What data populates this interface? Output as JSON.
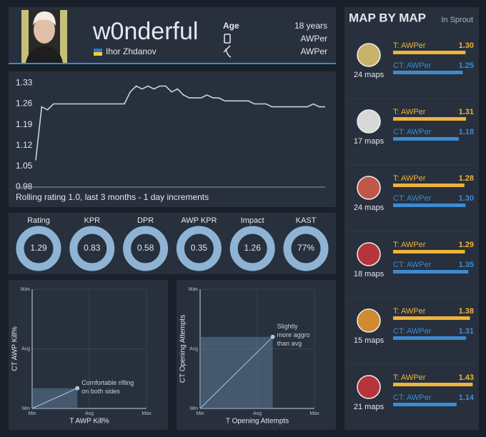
{
  "header": {
    "name": "w0nderful",
    "real_name": "Ihor Zhdanov",
    "info": [
      {
        "label": "Age",
        "value": "18 years"
      },
      {
        "value": "AWPer"
      },
      {
        "value": "AWPer"
      }
    ]
  },
  "chart_data": [
    {
      "type": "line",
      "caption": "Rolling rating 1.0, last 3 months - 1 day increments",
      "values": [
        1.07,
        1.25,
        1.24,
        1.26,
        1.26,
        1.26,
        1.26,
        1.26,
        1.26,
        1.26,
        1.26,
        1.26,
        1.26,
        1.26,
        1.26,
        1.26,
        1.3,
        1.32,
        1.31,
        1.32,
        1.31,
        1.32,
        1.32,
        1.3,
        1.31,
        1.29,
        1.28,
        1.28,
        1.28,
        1.29,
        1.28,
        1.28,
        1.27,
        1.27,
        1.27,
        1.27,
        1.27,
        1.26,
        1.26,
        1.26,
        1.25,
        1.25,
        1.25,
        1.25,
        1.25,
        1.25,
        1.25,
        1.26,
        1.25,
        1.25
      ],
      "color": "#c9d3de",
      "ylim": [
        0.98,
        1.35
      ],
      "yticks": [
        0.98,
        1.05,
        1.12,
        1.19,
        1.26,
        1.33
      ],
      "grid": false
    },
    {
      "type": "scatter",
      "x_label": "T AWP Kill%",
      "y_label": "CT AWP Kill%",
      "annotation": [
        "Comfortable rifling",
        "on both sides"
      ],
      "x": [
        0.79
      ],
      "values": [
        0.34
      ],
      "color": "#a9c6e0",
      "xlim": [
        0,
        2
      ],
      "ylim": [
        0,
        2
      ],
      "xticks": [
        {
          "value": 0,
          "label": "Min"
        },
        {
          "value": 1,
          "label": "Avg"
        },
        {
          "value": 2,
          "label": "Max"
        }
      ],
      "yticks": [
        {
          "value": 0,
          "label": "Min"
        },
        {
          "value": 1,
          "label": "Avg"
        },
        {
          "value": 2,
          "label": "Max"
        }
      ],
      "grid": true
    },
    {
      "type": "scatter",
      "x_label": "T Opening Attempts",
      "y_label": "CT Opening Attempts",
      "annotation": [
        "Slightly",
        "more aggro",
        "than avg"
      ],
      "x": [
        1.27
      ],
      "values": [
        1.2
      ],
      "color": "#a9c6e0",
      "xlim": [
        0,
        2
      ],
      "ylim": [
        0,
        2
      ],
      "xticks": [
        {
          "value": 0,
          "label": "Min"
        },
        {
          "value": 1,
          "label": "Avg"
        },
        {
          "value": 2,
          "label": "Max"
        }
      ],
      "yticks": [
        {
          "value": 0,
          "label": "Min"
        },
        {
          "value": 1,
          "label": "Avg"
        },
        {
          "value": 2,
          "label": "Max"
        }
      ],
      "grid": true
    }
  ],
  "stats": [
    {
      "label": "Rating",
      "value": "1.29"
    },
    {
      "label": "KPR",
      "value": "0.83"
    },
    {
      "label": "DPR",
      "value": "0.58"
    },
    {
      "label": "AWP KPR",
      "value": "0.35"
    },
    {
      "label": "Impact",
      "value": "1.26"
    },
    {
      "label": "KAST",
      "value": "77%"
    }
  ],
  "maps": {
    "title": "MAP BY MAP",
    "subtitle": "In Sprout",
    "xlim": [
      0,
      1.45
    ],
    "t_color": "#f0b43a",
    "ct_color": "#3b8bd4",
    "items": [
      {
        "count": "24 maps",
        "t": {
          "label": "T: AWPer",
          "value": 1.3,
          "value_label": "1.30"
        },
        "ct": {
          "label": "CT: AWPer",
          "value": 1.25,
          "value_label": "1.25"
        }
      },
      {
        "count": "17 maps",
        "t": {
          "label": "T: AWPer",
          "value": 1.31,
          "value_label": "1.31"
        },
        "ct": {
          "label": "CT: AWPer",
          "value": 1.18,
          "value_label": "1.18"
        }
      },
      {
        "count": "24 maps",
        "t": {
          "label": "T: AWPer",
          "value": 1.28,
          "value_label": "1.28"
        },
        "ct": {
          "label": "CT: AWPer",
          "value": 1.3,
          "value_label": "1.30"
        }
      },
      {
        "count": "18 maps",
        "t": {
          "label": "T: AWPer",
          "value": 1.29,
          "value_label": "1.29"
        },
        "ct": {
          "label": "CT: AWPer",
          "value": 1.35,
          "value_label": "1.35"
        }
      },
      {
        "count": "15 maps",
        "t": {
          "label": "T: AWPer",
          "value": 1.38,
          "value_label": "1.38"
        },
        "ct": {
          "label": "CT: AWPer",
          "value": 1.31,
          "value_label": "1.31"
        }
      },
      {
        "count": "21 maps",
        "t": {
          "label": "T: AWPer",
          "value": 1.43,
          "value_label": "1.43"
        },
        "ct": {
          "label": "CT: AWPer",
          "value": 1.14,
          "value_label": "1.14"
        }
      }
    ]
  }
}
